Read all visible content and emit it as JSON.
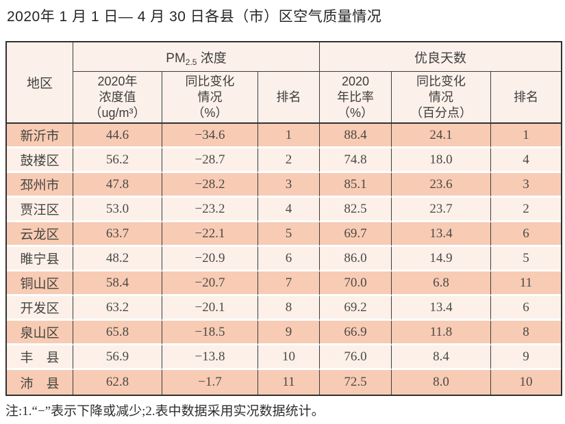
{
  "title": "2020年 1 月 1 日— 4 月 30 日各县（市）区空气质量情况",
  "table": {
    "header": {
      "region": "地区",
      "pm_group": {
        "prefix": "PM",
        "sub": "2.5",
        "suffix": " 浓度"
      },
      "good_group": "优良天数",
      "sub_headers": {
        "pm_value": "2020年\n浓度值\n（ug/m³）",
        "pm_change": "同比变化\n情况\n（%）",
        "pm_rank": "排名",
        "good_ratio": "2020\n年比率\n（%）",
        "good_change": "同比变化\n情况\n（百分点）",
        "good_rank": "排名"
      }
    },
    "rows": [
      {
        "region": "新沂市",
        "pm_value": "44.6",
        "pm_change": "−34.6",
        "pm_rank": "1",
        "good_ratio": "88.4",
        "good_change": "24.1",
        "good_rank": "1"
      },
      {
        "region": "鼓楼区",
        "pm_value": "56.2",
        "pm_change": "−28.7",
        "pm_rank": "2",
        "good_ratio": "74.8",
        "good_change": "18.0",
        "good_rank": "4"
      },
      {
        "region": "邳州市",
        "pm_value": "47.8",
        "pm_change": "−28.2",
        "pm_rank": "3",
        "good_ratio": "85.1",
        "good_change": "23.6",
        "good_rank": "3"
      },
      {
        "region": "贾汪区",
        "pm_value": "53.0",
        "pm_change": "−23.2",
        "pm_rank": "4",
        "good_ratio": "82.5",
        "good_change": "23.7",
        "good_rank": "2"
      },
      {
        "region": "云龙区",
        "pm_value": "63.7",
        "pm_change": "−22.1",
        "pm_rank": "5",
        "good_ratio": "69.7",
        "good_change": "13.4",
        "good_rank": "6"
      },
      {
        "region": "睢宁县",
        "pm_value": "48.2",
        "pm_change": "−20.9",
        "pm_rank": "6",
        "good_ratio": "86.0",
        "good_change": "14.9",
        "good_rank": "5"
      },
      {
        "region": "铜山区",
        "pm_value": "58.4",
        "pm_change": "−20.7",
        "pm_rank": "7",
        "good_ratio": "70.0",
        "good_change": "6.8",
        "good_rank": "11"
      },
      {
        "region": "开发区",
        "pm_value": "63.2",
        "pm_change": "−20.1",
        "pm_rank": "8",
        "good_ratio": "69.2",
        "good_change": "13.4",
        "good_rank": "6"
      },
      {
        "region": "泉山区",
        "pm_value": "65.8",
        "pm_change": "−18.5",
        "pm_rank": "9",
        "good_ratio": "66.9",
        "good_change": "11.8",
        "good_rank": "8"
      },
      {
        "region": "丰　县",
        "pm_value": "56.9",
        "pm_change": "−13.8",
        "pm_rank": "10",
        "good_ratio": "76.0",
        "good_change": "8.4",
        "good_rank": "9"
      },
      {
        "region": "沛　县",
        "pm_value": "62.8",
        "pm_change": "−1.7",
        "pm_rank": "11",
        "good_ratio": "72.5",
        "good_change": "8.0",
        "good_rank": "10"
      }
    ]
  },
  "note": "注:1.“−”表示下降或减少;2.表中数据采用实况数据统计。",
  "colors": {
    "row_dark": "#f8cbb4",
    "row_light": "#fcf0e9",
    "header_bg": "#fcf1ea",
    "border_dark": "#3b3b3b",
    "outer_border": "#2f2f2f",
    "text": "#4a4a45"
  }
}
